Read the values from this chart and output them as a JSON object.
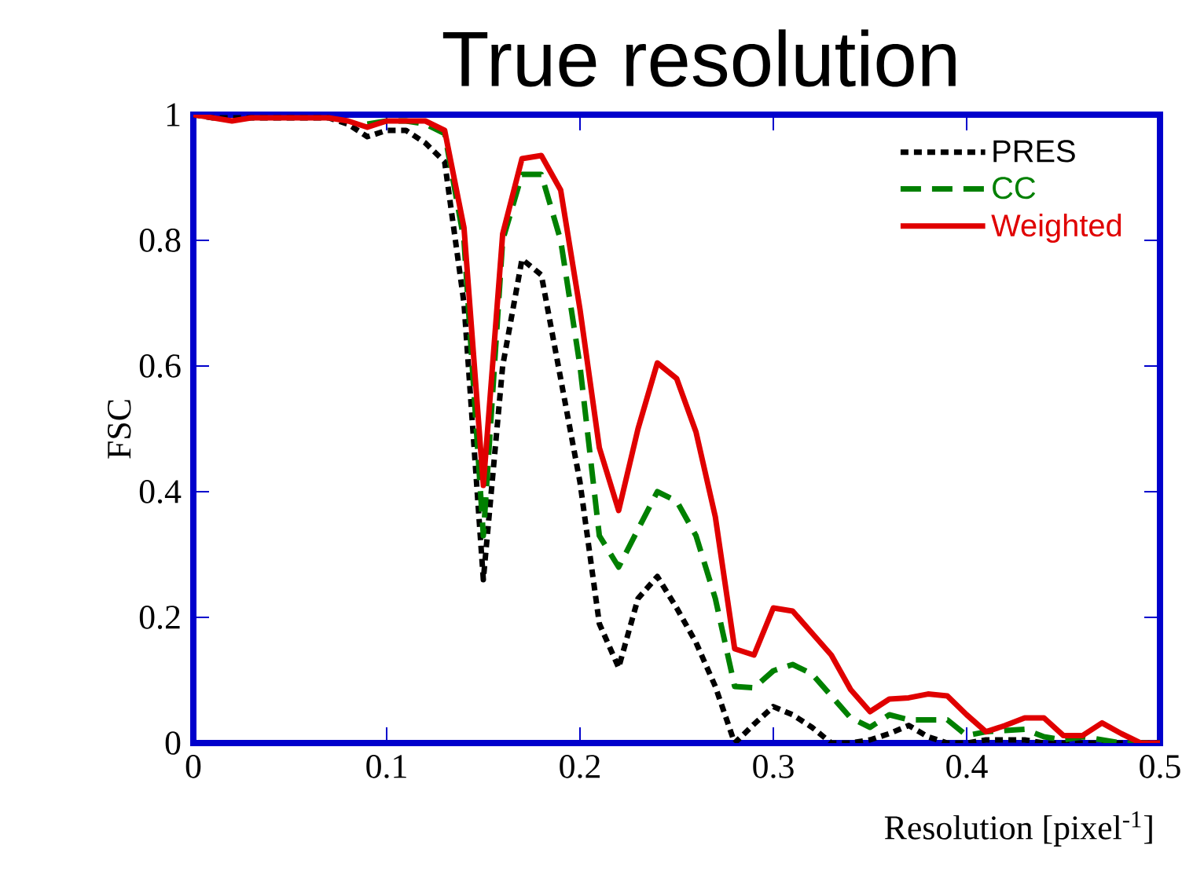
{
  "chart_data": {
    "type": "line",
    "title": "True resolution",
    "xlabel": "Resolution [pixel$^{-1}$]",
    "ylabel": "FSC",
    "x": [
      0,
      0.01,
      0.02,
      0.03,
      0.04,
      0.05,
      0.06,
      0.07,
      0.08,
      0.09,
      0.1,
      0.11,
      0.12,
      0.13,
      0.14,
      0.15,
      0.16,
      0.17,
      0.18,
      0.19,
      0.2,
      0.21,
      0.22,
      0.23,
      0.24,
      0.25,
      0.26,
      0.27,
      0.28,
      0.29,
      0.3,
      0.31,
      0.32,
      0.33,
      0.34,
      0.35,
      0.36,
      0.37,
      0.38,
      0.39,
      0.4,
      0.41,
      0.42,
      0.43,
      0.44,
      0.45,
      0.46,
      0.47,
      0.48,
      0.49,
      0.5
    ],
    "series": [
      {
        "name": "PRES",
        "color": "#000000",
        "line_style": "dotted",
        "values": [
          1,
          0.995,
          0.995,
          0.995,
          0.995,
          0.995,
          0.995,
          0.995,
          0.985,
          0.965,
          0.975,
          0.975,
          0.955,
          0.925,
          0.7,
          0.26,
          0.6,
          0.77,
          0.745,
          0.58,
          0.415,
          0.19,
          0.12,
          0.23,
          0.265,
          0.215,
          0.16,
          0.09,
          0,
          0.03,
          0.058,
          0.045,
          0.025,
          0,
          0,
          0.005,
          0.015,
          0.028,
          0.01,
          0,
          0,
          0.005,
          0.005,
          0.005,
          0,
          0,
          0,
          0,
          0,
          0,
          0
        ]
      },
      {
        "name": "CC",
        "color": "#008000",
        "line_style": "dashed",
        "values": [
          null,
          null,
          null,
          null,
          null,
          null,
          null,
          null,
          null,
          0.985,
          0.99,
          0.99,
          0.985,
          0.97,
          0.8,
          0.33,
          0.8,
          0.905,
          0.905,
          0.8,
          0.6,
          0.33,
          0.28,
          0.34,
          0.4,
          0.385,
          0.33,
          0.23,
          0.09,
          0.088,
          0.115,
          0.125,
          0.11,
          0.075,
          0.04,
          0.025,
          0.045,
          0.037,
          0.037,
          0.037,
          0.012,
          0.018,
          0.02,
          0.022,
          0.01,
          0.005,
          0.01,
          0.005,
          0,
          0,
          0
        ]
      },
      {
        "name": "Weighted",
        "color": "#e00000",
        "line_style": "solid",
        "values": [
          1,
          0.995,
          0.99,
          0.995,
          0.995,
          0.995,
          0.995,
          0.995,
          0.99,
          0.98,
          0.99,
          0.99,
          0.99,
          0.975,
          0.82,
          0.41,
          0.81,
          0.93,
          0.935,
          0.88,
          0.69,
          0.47,
          0.37,
          0.5,
          0.605,
          0.58,
          0.495,
          0.36,
          0.15,
          0.14,
          0.215,
          0.21,
          0.175,
          0.14,
          0.085,
          0.05,
          0.07,
          0.072,
          0.078,
          0.075,
          0.045,
          0.018,
          0.028,
          0.04,
          0.04,
          0.012,
          0.012,
          0.032,
          0.015,
          0,
          0
        ]
      }
    ],
    "xlim": [
      0,
      0.5
    ],
    "xticks": [
      0,
      0.1,
      0.2,
      0.3,
      0.4,
      0.5
    ],
    "ylim": [
      0,
      1
    ],
    "yticks": [
      0,
      0.2,
      0.4,
      0.6,
      0.8,
      1
    ],
    "grid": false,
    "legend": "top right",
    "marker": "none"
  }
}
